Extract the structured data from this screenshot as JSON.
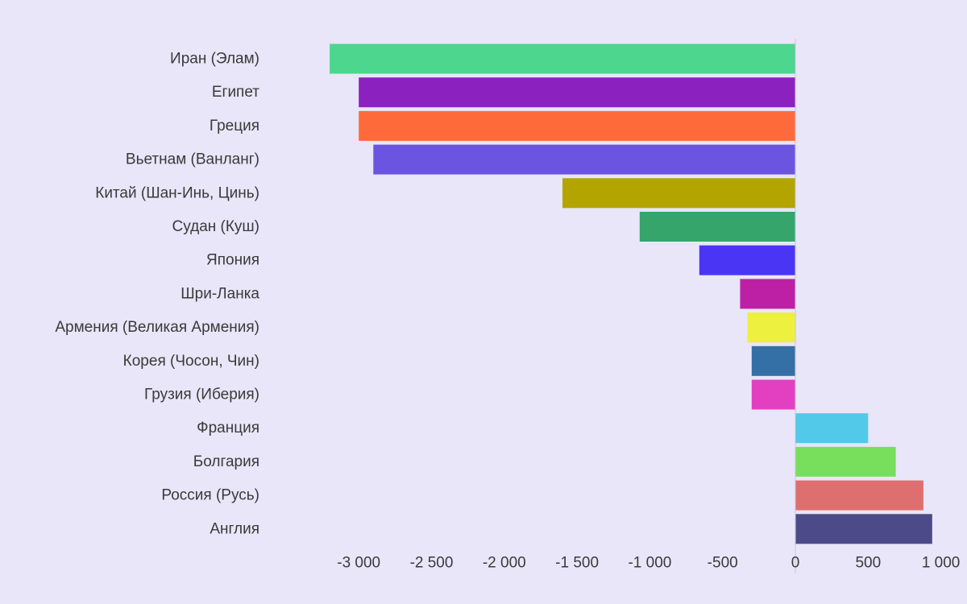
{
  "chart_data": {
    "type": "bar",
    "orientation": "horizontal",
    "categories": [
      "Иран (Элам)",
      "Египет",
      "Греция",
      "Вьетнам (Ванланг)",
      "Китай (Шан-Инь, Цинь)",
      "Судан (Куш)",
      "Япония",
      "Шри-Ланка",
      "Армения (Великая Армения)",
      "Корея (Чосон, Чин)",
      "Грузия (Иберия)",
      "Франция",
      "Болгария",
      "Россия (Русь)",
      "Англия"
    ],
    "values": [
      -3200,
      -3000,
      -3000,
      -2900,
      -1600,
      -1070,
      -660,
      -380,
      -330,
      -300,
      -300,
      500,
      690,
      880,
      940
    ],
    "colors": [
      "#4cd68e",
      "#8b22c0",
      "#ff6a3a",
      "#6b55e0",
      "#b3a400",
      "#35a56b",
      "#4b35f5",
      "#be20a5",
      "#eef040",
      "#3470a6",
      "#e240c0",
      "#52c9e8",
      "#78df5c",
      "#df6e6e",
      "#4c4a88"
    ],
    "xlim": [
      -3300,
      1000
    ],
    "ticks": [
      -3000,
      -2500,
      -2000,
      -1500,
      -1000,
      -500,
      0,
      500,
      1000
    ],
    "tick_labels": [
      "-3 000",
      "-2 500",
      "-2 000",
      "-1 500",
      "-1 000",
      "-500",
      "0",
      "500",
      "1 000"
    ],
    "title": "",
    "xlabel": "",
    "ylabel": "",
    "grid": false,
    "legend": "none"
  }
}
